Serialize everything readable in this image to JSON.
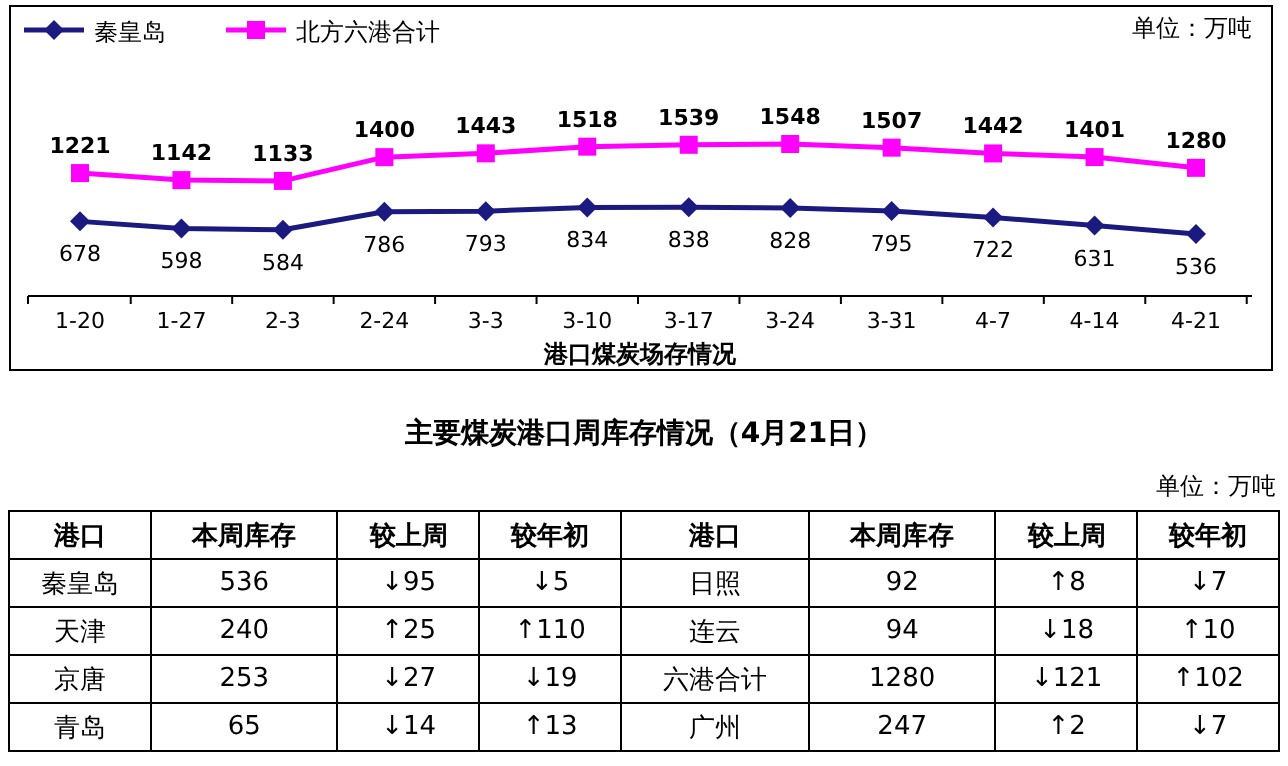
{
  "chart_data": [
    {
      "type": "line",
      "xlabel": "港口煤炭场存情况",
      "categories": [
        "1-20",
        "1-27",
        "2-3",
        "2-24",
        "3-3",
        "3-10",
        "3-17",
        "3-24",
        "3-31",
        "4-7",
        "4-14",
        "4-21"
      ],
      "series": [
        {
          "name": "秦皇岛",
          "color": "#1a1a80",
          "marker": "diamond",
          "values": [
            678,
            598,
            584,
            786,
            793,
            834,
            838,
            828,
            795,
            722,
            631,
            536
          ]
        },
        {
          "name": "北方六港合计",
          "color": "#ff00ff",
          "marker": "square",
          "values": [
            1221,
            1142,
            1133,
            1400,
            1443,
            1518,
            1539,
            1548,
            1507,
            1442,
            1401,
            1280
          ]
        }
      ],
      "annotations": [
        "单位：万吨"
      ],
      "legend": "top left",
      "data_labels": true,
      "line_style": "solid"
    },
    {
      "type": "other",
      "title": "主要煤炭港口周库存情况（4月21日）",
      "annotations": [
        "单位：万吨"
      ],
      "categories": [
        "港口",
        "本周库存",
        "较上周",
        "较年初",
        "港口",
        "本周库存",
        "较上周",
        "较年初"
      ],
      "cell_labels": [
        [
          "秦皇岛",
          "536",
          "↓95",
          "↓5",
          "日照",
          "92",
          "↑8",
          "↓7"
        ],
        [
          "天津",
          "240",
          "↑25",
          "↑110",
          "连云",
          "94",
          "↓18",
          "↑10"
        ],
        [
          "京唐",
          "253",
          "↓27",
          "↓19",
          "六港合计",
          "1280",
          "↓121",
          "↑102"
        ],
        [
          "青岛",
          "65",
          "↓14",
          "↑13",
          "广州",
          "247",
          "↑2",
          "↓7"
        ]
      ]
    }
  ]
}
